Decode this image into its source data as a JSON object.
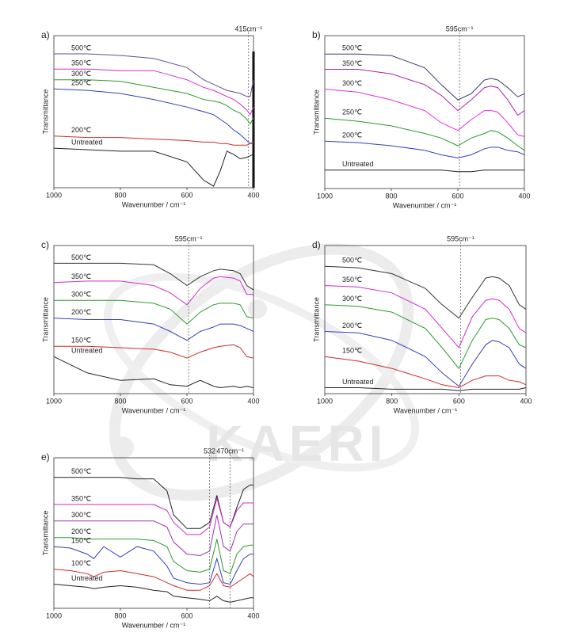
{
  "watermark": "KAERI",
  "chart_data": [
    {
      "type": "line",
      "label": "a)",
      "xlabel": "Wavenumber / cm⁻¹",
      "ylabel": "Transmittance",
      "xlim": [
        1000,
        400
      ],
      "xticks": [
        1000,
        800,
        600,
        400
      ],
      "ylim": [
        0,
        100
      ],
      "x": [
        1000,
        900,
        800,
        700,
        600,
        550,
        520,
        500,
        480,
        460,
        440,
        420,
        410,
        400
      ],
      "annotations": [
        {
          "x": 415,
          "label": "415cm⁻¹"
        }
      ],
      "series": [
        {
          "name": "500℃",
          "color": "#6a4c93",
          "values": [
            88,
            88,
            87,
            85,
            79,
            71,
            68,
            66,
            64,
            63,
            62,
            60,
            60,
            71
          ]
        },
        {
          "name": "350℃",
          "color": "#d02ad0",
          "values": [
            78,
            78,
            77,
            77,
            71,
            66,
            64,
            62,
            60,
            58,
            55,
            51,
            48,
            53
          ]
        },
        {
          "name": "300℃",
          "color": "#2a9a2a",
          "values": [
            71,
            71,
            70,
            66,
            62,
            58,
            57,
            56,
            54,
            51,
            49,
            45,
            42,
            46
          ]
        },
        {
          "name": "250℃",
          "color": "#3040c0",
          "values": [
            65,
            64,
            62,
            58,
            53,
            50,
            48,
            45,
            42,
            38,
            35,
            31,
            29,
            29
          ]
        },
        {
          "name": "200℃",
          "color": "#d02a2a",
          "values": [
            34,
            33,
            33,
            32,
            31,
            30,
            30,
            29,
            29,
            28,
            28,
            28,
            29,
            30
          ]
        },
        {
          "name": "Untreated",
          "color": "#222222",
          "values": [
            26,
            25,
            24,
            24,
            17,
            5,
            1,
            11,
            24,
            22,
            19,
            20,
            21,
            22
          ]
        }
      ]
    },
    {
      "type": "line",
      "label": "b)",
      "xlabel": "Wavenumber / cm⁻¹",
      "ylabel": "Transmittance",
      "xlim": [
        1000,
        400
      ],
      "xticks": [
        1000,
        800,
        600,
        400
      ],
      "ylim": [
        0,
        100
      ],
      "x": [
        1000,
        900,
        800,
        700,
        650,
        600,
        560,
        520,
        500,
        480,
        450,
        420,
        400
      ],
      "annotations": [
        {
          "x": 595,
          "label": "595cm⁻¹"
        }
      ],
      "series": [
        {
          "name": "500℃",
          "color": "#3a3a6a",
          "values": [
            88,
            88,
            87,
            79,
            68,
            58,
            62,
            71,
            72,
            71,
            66,
            60,
            62
          ]
        },
        {
          "name": "350℃",
          "color": "#b020b0",
          "values": [
            78,
            78,
            75,
            68,
            61,
            51,
            58,
            66,
            67,
            66,
            58,
            48,
            51
          ]
        },
        {
          "name": "300℃",
          "color": "#e030e0",
          "values": [
            65,
            63,
            58,
            51,
            43,
            38,
            45,
            51,
            51,
            50,
            43,
            35,
            34
          ]
        },
        {
          "name": "250℃",
          "color": "#2a9a2a",
          "values": [
            46,
            44,
            41,
            36,
            33,
            28,
            33,
            36,
            38,
            37,
            33,
            28,
            25
          ]
        },
        {
          "name": "200℃",
          "color": "#3040c0",
          "values": [
            31,
            30,
            28,
            25,
            22,
            20,
            22,
            26,
            27,
            27,
            25,
            24,
            22
          ]
        },
        {
          "name": "Untreated",
          "color": "#222222",
          "values": [
            12,
            12,
            12,
            12,
            12,
            11,
            11,
            12,
            12,
            12,
            12,
            12,
            12
          ]
        }
      ]
    },
    {
      "type": "line",
      "label": "c)",
      "xlabel": "Wavenumber / cm⁻¹",
      "ylabel": "Transmittance",
      "xlim": [
        1000,
        400
      ],
      "xticks": [
        1000,
        800,
        600,
        400
      ],
      "ylim": [
        0,
        100
      ],
      "x": [
        1000,
        900,
        800,
        700,
        650,
        600,
        560,
        520,
        500,
        460,
        440,
        420,
        400
      ],
      "annotations": [
        {
          "x": 595,
          "label": "595cm⁻¹"
        }
      ],
      "series": [
        {
          "name": "500℃",
          "color": "#333333",
          "values": [
            88,
            88,
            88,
            87,
            81,
            73,
            79,
            83,
            84,
            83,
            81,
            73,
            70
          ]
        },
        {
          "name": "350℃",
          "color": "#d02ad0",
          "values": [
            75,
            76,
            76,
            73,
            68,
            60,
            71,
            78,
            79,
            78,
            76,
            67,
            67
          ]
        },
        {
          "name": "300℃",
          "color": "#2a9a2a",
          "values": [
            63,
            63,
            63,
            61,
            57,
            47,
            55,
            60,
            61,
            61,
            60,
            52,
            51
          ]
        },
        {
          "name": "200℃",
          "color": "#3040c0",
          "values": [
            51,
            50,
            50,
            47,
            42,
            36,
            42,
            45,
            47,
            47,
            46,
            44,
            42
          ]
        },
        {
          "name": "150℃",
          "color": "#d02a2a",
          "values": [
            32,
            32,
            31,
            30,
            28,
            24,
            28,
            31,
            32,
            33,
            31,
            25,
            24
          ]
        },
        {
          "name": "Untreated",
          "color": "#222222",
          "values": [
            25,
            14,
            9,
            10,
            6,
            5,
            9,
            5,
            4,
            5,
            4,
            5,
            4
          ]
        }
      ]
    },
    {
      "type": "line",
      "label": "d)",
      "xlabel": "Wavenumber / cm⁻¹",
      "ylabel": "Transmittance",
      "xlim": [
        1000,
        400
      ],
      "xticks": [
        1000,
        800,
        600,
        400
      ],
      "ylim": [
        0,
        100
      ],
      "x": [
        1000,
        900,
        800,
        700,
        650,
        600,
        560,
        520,
        500,
        480,
        450,
        420,
        400
      ],
      "annotations": [
        {
          "x": 595,
          "label": "595cm⁻¹"
        }
      ],
      "series": [
        {
          "name": "500℃",
          "color": "#333333",
          "values": [
            86,
            85,
            81,
            71,
            60,
            51,
            65,
            78,
            79,
            78,
            73,
            60,
            57
          ]
        },
        {
          "name": "350℃",
          "color": "#d02ad0",
          "values": [
            73,
            72,
            68,
            57,
            44,
            31,
            52,
            63,
            64,
            63,
            57,
            44,
            41
          ]
        },
        {
          "name": "300℃",
          "color": "#2a9a2a",
          "values": [
            60,
            59,
            55,
            44,
            31,
            17,
            36,
            50,
            51,
            50,
            44,
            33,
            31
          ]
        },
        {
          "name": "200℃",
          "color": "#3040c0",
          "values": [
            42,
            41,
            36,
            25,
            14,
            5,
            20,
            33,
            36,
            35,
            31,
            20,
            17
          ]
        },
        {
          "name": "150℃",
          "color": "#d02a2a",
          "values": [
            25,
            22,
            17,
            10,
            6,
            4,
            9,
            12,
            12,
            12,
            9,
            8,
            6
          ]
        },
        {
          "name": "Untreated",
          "color": "#222222",
          "values": [
            4,
            4,
            3,
            3,
            3,
            2,
            3,
            3,
            3,
            3,
            3,
            3,
            4
          ]
        }
      ]
    },
    {
      "type": "line",
      "label": "e)",
      "xlabel": "Wavenumber / cm⁻¹",
      "ylabel": "Transmittance",
      "xlim": [
        1000,
        400
      ],
      "xticks": [
        1000,
        800,
        600,
        400
      ],
      "ylim": [
        0,
        100
      ],
      "x": [
        1000,
        950,
        900,
        880,
        850,
        800,
        750,
        700,
        660,
        640,
        600,
        560,
        532,
        510,
        490,
        470,
        450,
        430,
        410,
        400
      ],
      "annotations": [
        {
          "x": 532,
          "label": "532"
        },
        {
          "x": 470,
          "label": "470cm⁻¹"
        }
      ],
      "series": [
        {
          "name": "500℃",
          "color": "#222222",
          "values": [
            87,
            87,
            87,
            87,
            87,
            87,
            86,
            86,
            78,
            62,
            53,
            53,
            57,
            75,
            57,
            54,
            67,
            79,
            82,
            82
          ]
        },
        {
          "name": "350℃",
          "color": "#d02ad0",
          "values": [
            69,
            69,
            69,
            69,
            69,
            69,
            69,
            69,
            65,
            57,
            49,
            49,
            54,
            73,
            57,
            54,
            65,
            70,
            70,
            70
          ]
        },
        {
          "name": "300℃",
          "color": "#a030b0",
          "values": [
            58,
            58,
            58,
            58,
            58,
            58,
            58,
            58,
            54,
            44,
            36,
            35,
            38,
            62,
            41,
            38,
            51,
            56,
            56,
            56
          ]
        },
        {
          "name": "200℃",
          "color": "#2a9a2a",
          "values": [
            47,
            47,
            46,
            46,
            46,
            46,
            46,
            45,
            41,
            31,
            25,
            24,
            26,
            46,
            25,
            23,
            36,
            41,
            42,
            42
          ]
        },
        {
          "name": "150℃",
          "color": "#3040c0",
          "values": [
            41,
            40,
            36,
            33,
            41,
            34,
            41,
            38,
            28,
            20,
            17,
            16,
            17,
            33,
            17,
            16,
            25,
            33,
            36,
            36
          ]
        },
        {
          "name": "100℃",
          "color": "#d02a2a",
          "values": [
            26,
            25,
            23,
            21,
            24,
            25,
            23,
            21,
            17,
            15,
            12,
            12,
            15,
            23,
            15,
            14,
            17,
            20,
            23,
            21
          ]
        },
        {
          "name": "Untreated",
          "color": "#222222",
          "values": [
            16,
            15,
            14,
            13,
            14,
            15,
            14,
            12,
            11,
            8,
            7,
            6,
            5,
            8,
            5,
            4,
            5,
            6,
            7,
            7
          ]
        }
      ]
    }
  ]
}
